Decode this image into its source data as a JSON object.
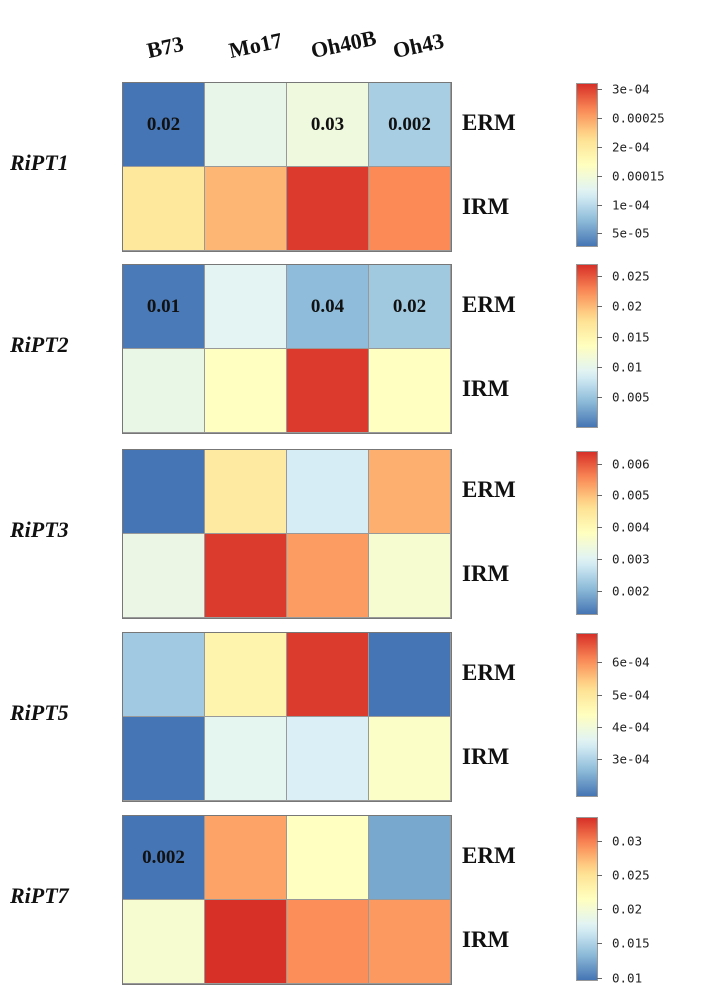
{
  "chart_data": {
    "type": "heatmap",
    "columns": [
      "B73",
      "Mo17",
      "Oh40B",
      "Oh43"
    ],
    "rows": [
      "ERM",
      "IRM"
    ],
    "colormap": [
      "#4575b4",
      "#91bfdb",
      "#e0f3f8",
      "#ffffbf",
      "#fee090",
      "#fc8d59",
      "#d73027"
    ],
    "panels": [
      {
        "gene": "RiPT1",
        "values": [
          [
            3e-05,
            0.000135,
            0.000145,
            9e-05
          ],
          [
            0.000205,
            0.00024,
            0.000305,
            0.000265
          ]
        ],
        "annotations": [
          [
            "0.02",
            "",
            "0.03",
            "0.002"
          ],
          [
            "",
            "",
            "",
            ""
          ]
        ],
        "legend_range": [
          3e-05,
          0.00031
        ],
        "legend_ticks": [
          {
            "value": 5e-05,
            "label": "5e-05"
          },
          {
            "value": 0.0001,
            "label": "1e-04"
          },
          {
            "value": 0.00015,
            "label": "0.00015"
          },
          {
            "value": 0.0002,
            "label": "2e-04"
          },
          {
            "value": 0.00025,
            "label": "0.00025"
          },
          {
            "value": 0.0003,
            "label": "3e-04"
          }
        ]
      },
      {
        "gene": "RiPT2",
        "values": [
          [
            0.0005,
            0.0095,
            0.0045,
            0.0055
          ],
          [
            0.0105,
            0.0135,
            0.0265,
            0.0135
          ]
        ],
        "annotations": [
          [
            "0.01",
            "",
            "0.04",
            "0.02"
          ],
          [
            "",
            "",
            "",
            ""
          ]
        ],
        "legend_range": [
          0.0002,
          0.027
        ],
        "legend_ticks": [
          {
            "value": 0.005,
            "label": "0.005"
          },
          {
            "value": 0.01,
            "label": "0.01"
          },
          {
            "value": 0.015,
            "label": "0.015"
          },
          {
            "value": 0.02,
            "label": "0.02"
          },
          {
            "value": 0.025,
            "label": "0.025"
          }
        ]
      },
      {
        "gene": "RiPT3",
        "values": [
          [
            0.0013,
            0.0044,
            0.0029,
            0.0052
          ],
          [
            0.0033,
            0.0063,
            0.0054,
            0.0036
          ]
        ],
        "annotations": [
          [
            "",
            "",
            "",
            ""
          ],
          [
            "",
            "",
            "",
            ""
          ]
        ],
        "legend_range": [
          0.0013,
          0.0064
        ],
        "legend_ticks": [
          {
            "value": 0.002,
            "label": "0.002"
          },
          {
            "value": 0.003,
            "label": "0.003"
          },
          {
            "value": 0.004,
            "label": "0.004"
          },
          {
            "value": 0.005,
            "label": "0.005"
          },
          {
            "value": 0.006,
            "label": "0.006"
          }
        ]
      },
      {
        "gene": "RiPT5",
        "values": [
          [
            0.00029,
            0.00047,
            0.00068,
            0.00019
          ],
          [
            0.00019,
            0.00037,
            0.00035,
            0.00043
          ]
        ],
        "annotations": [
          [
            "",
            "",
            "",
            ""
          ],
          [
            "",
            "",
            "",
            ""
          ]
        ],
        "legend_range": [
          0.00019,
          0.00069
        ],
        "legend_ticks": [
          {
            "value": 0.0003,
            "label": "3e-04"
          },
          {
            "value": 0.0004,
            "label": "4e-04"
          },
          {
            "value": 0.0005,
            "label": "5e-04"
          },
          {
            "value": 0.0006,
            "label": "6e-04"
          }
        ]
      },
      {
        "gene": "RiPT7",
        "values": [
          [
            0.0098,
            0.0285,
            0.0215,
            0.0125
          ],
          [
            0.0205,
            0.0335,
            0.0295,
            0.029
          ]
        ],
        "annotations": [
          [
            "0.002",
            "",
            "",
            ""
          ],
          [
            "",
            "",
            "",
            ""
          ]
        ],
        "legend_range": [
          0.0098,
          0.0335
        ],
        "legend_ticks": [
          {
            "value": 0.01,
            "label": "0.01"
          },
          {
            "value": 0.015,
            "label": "0.015"
          },
          {
            "value": 0.02,
            "label": "0.02"
          },
          {
            "value": 0.025,
            "label": "0.025"
          },
          {
            "value": 0.03,
            "label": "0.03"
          }
        ]
      }
    ]
  }
}
